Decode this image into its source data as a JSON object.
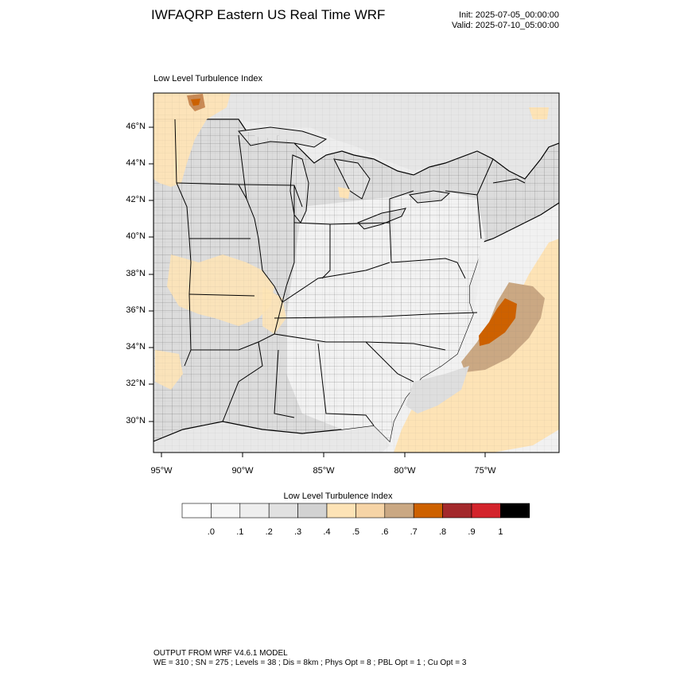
{
  "header": {
    "title": "IWFAQRP Eastern US Real Time WRF",
    "init": "Init: 2025-07-05_00:00:00",
    "valid": "Valid: 2025-07-10_05:00:00"
  },
  "map": {
    "subtitle": "Low Level Turbulence Index",
    "variable": "Low Level Turbulence Index",
    "projection": "Lambert Conformal",
    "lat_labels": [
      "46°N",
      "44°N",
      "42°N",
      "40°N",
      "38°N",
      "36°N",
      "34°N",
      "32°N",
      "30°N"
    ],
    "lon_labels": [
      "95°W",
      "90°W",
      "85°W",
      "80°W",
      "75°W"
    ],
    "features": [
      "state-boundaries",
      "county-boundaries",
      "great-lakes",
      "coastline"
    ]
  },
  "colorbar": {
    "title": "Low Level Turbulence Index",
    "colors": [
      "#ffffff",
      "#f7f7f7",
      "#eeeeee",
      "#e1e1e1",
      "#d2d2d2",
      "#fde3b6",
      "#f6d4a6",
      "#caa883",
      "#cd6100",
      "#a3292c",
      "#d3242c",
      "#000000"
    ],
    "labels": [
      ".0",
      ".1",
      ".2",
      ".3",
      ".4",
      ".5",
      ".6",
      ".7",
      ".8",
      ".9",
      "1"
    ]
  },
  "footer": {
    "line1": "OUTPUT FROM WRF V4.6.1 MODEL",
    "line2": "WE = 310 ; SN = 275 ; Levels = 38 ; Dis = 8km ; Phys Opt = 8 ; PBL Opt = 1 ; Cu Opt = 3"
  }
}
